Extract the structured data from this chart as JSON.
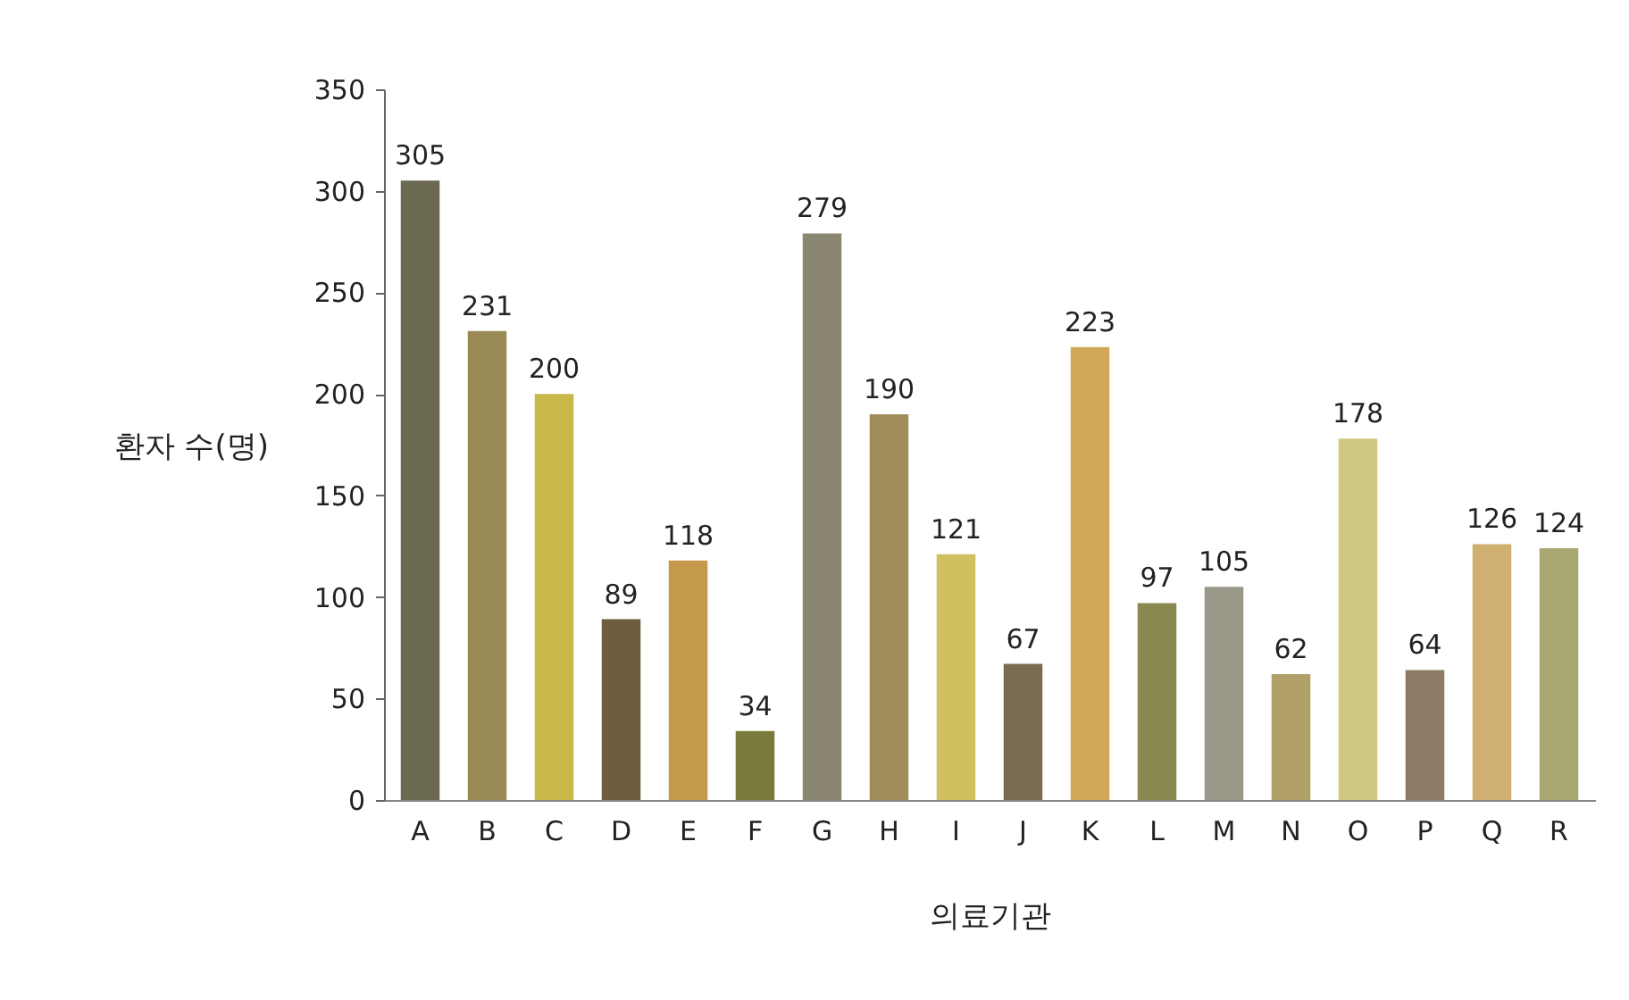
{
  "chart_data": {
    "type": "bar",
    "xlabel": "의료기관",
    "ylabel": "환자 수(명)",
    "categories": [
      "A",
      "B",
      "C",
      "D",
      "E",
      "F",
      "G",
      "H",
      "I",
      "J",
      "K",
      "L",
      "M",
      "N",
      "O",
      "P",
      "Q",
      "R"
    ],
    "values": [
      305,
      231,
      200,
      89,
      118,
      34,
      279,
      190,
      121,
      67,
      223,
      97,
      105,
      62,
      178,
      64,
      126,
      124
    ],
    "colors": [
      "#6b6a50",
      "#9a8a55",
      "#c8b84a",
      "#6e5c3c",
      "#c49a4a",
      "#7a7a3a",
      "#8a8670",
      "#a08c58",
      "#d0c060",
      "#7a6a50",
      "#d0a858",
      "#8a8a50",
      "#9a9888",
      "#b0a068",
      "#d0c880",
      "#8c7a64",
      "#d0b070",
      "#a8a870"
    ],
    "ylim": [
      0,
      350
    ],
    "yticks": [
      0,
      50,
      100,
      150,
      200,
      250,
      300,
      350
    ],
    "data_labels": true
  }
}
